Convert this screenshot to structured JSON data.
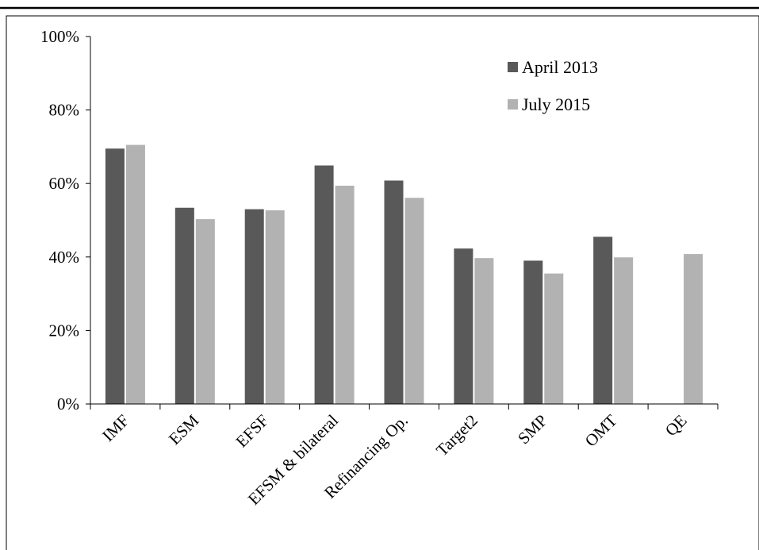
{
  "chart_data": {
    "type": "bar",
    "title": "",
    "xlabel": "",
    "ylabel": "",
    "categories": [
      "IMF",
      "ESM",
      "EFSF",
      "EFSM & bilateral",
      "Refinancing Op.",
      "Target2",
      "SMP",
      "OMT",
      "QE"
    ],
    "series": [
      {
        "name": "April 2013",
        "values": [
          69.5,
          53.4,
          53.0,
          64.9,
          60.8,
          42.3,
          39.0,
          45.5,
          null
        ],
        "color": "#595959"
      },
      {
        "name": "July 2015",
        "values": [
          70.5,
          50.3,
          52.7,
          59.4,
          56.1,
          39.7,
          35.5,
          39.9,
          40.8
        ],
        "color": "#b2b2b2"
      }
    ],
    "ylim": [
      0,
      100
    ],
    "yticks": [
      "0%",
      "20%",
      "40%",
      "60%",
      "80%",
      "100%"
    ],
    "grid": false,
    "legend_position": "top-right"
  }
}
